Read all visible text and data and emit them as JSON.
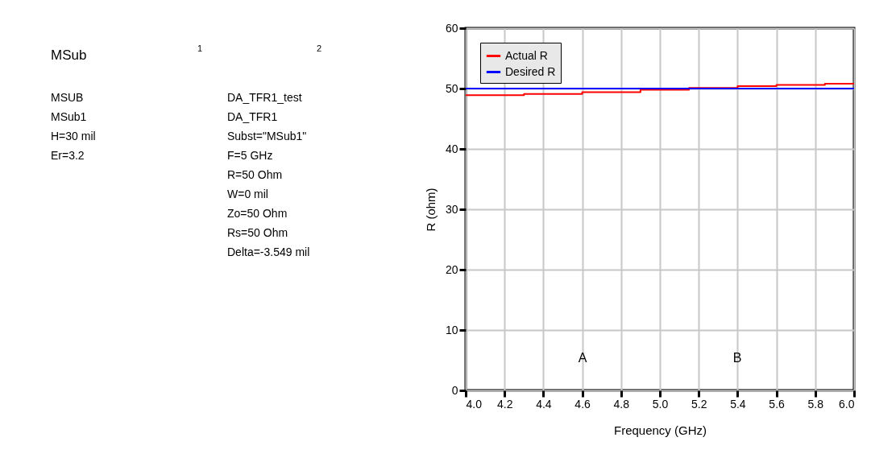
{
  "chart_data": {
    "type": "line",
    "xlabel": "Frequency (GHz)",
    "ylabel": "R (ohm)",
    "x": [
      4.0,
      4.3,
      4.6,
      4.9,
      5.15,
      5.4,
      5.6,
      5.85,
      6.0
    ],
    "series": [
      {
        "name": "Actual R",
        "color": "#ff0000",
        "type": "step",
        "values": [
          48.9,
          49.1,
          49.4,
          49.8,
          50.1,
          50.4,
          50.6,
          50.8,
          50.8
        ]
      },
      {
        "name": "Desired R",
        "color": "#0000ff",
        "values": [
          50,
          50,
          50,
          50,
          50,
          50,
          50,
          50,
          50
        ]
      }
    ],
    "xlim": [
      4.0,
      6.0
    ],
    "xticks": [
      {
        "value": 4,
        "label": "4.0"
      },
      4.2,
      4.4,
      4.6,
      4.8,
      {
        "value": 5,
        "label": "5.0"
      },
      5.2,
      5.4,
      5.6,
      5.8,
      {
        "value": 6,
        "label": "6.0"
      }
    ],
    "ylim": [
      0,
      60
    ],
    "yticks": [
      0,
      10,
      20,
      30,
      40,
      50,
      60
    ],
    "grid": true,
    "legend": "top left",
    "annotations": [
      "A",
      "B",
      "MSub",
      "MSUB\nMSub1\nH=30 mil\nEr=3.2",
      "1",
      "2",
      "DA_TFR1_test\nDA_TFR1\nSubst=\"MSub1\"\nF=5 GHz\nR=50 Ohm\nW=0 mil\nZo=50 Ohm\nRs=50 Ohm\nDelta=-3.549 mil"
    ]
  }
}
